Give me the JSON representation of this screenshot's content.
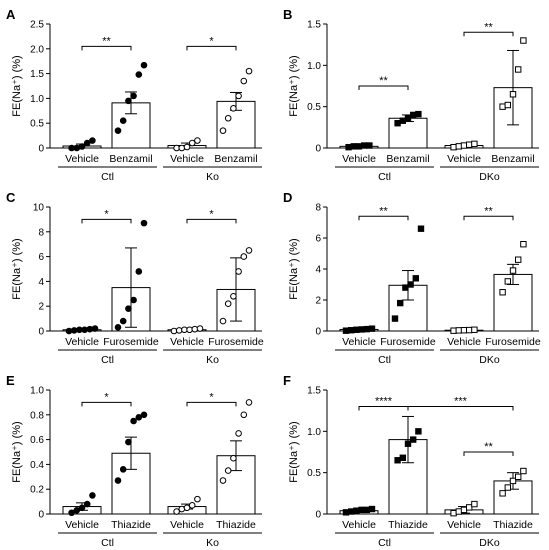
{
  "chart_data": [
    {
      "panel_letter": "A",
      "type": "bar",
      "ylabel": "FE(Na⁺) (%)",
      "ylim": [
        0,
        2.5
      ],
      "yticks": [
        0,
        0.5,
        1,
        1.5,
        2,
        2.5
      ],
      "tick_labels": [
        "0",
        "0.5",
        "1.0",
        "1.5",
        "2.0",
        "2.5"
      ],
      "categories": [
        "Vehicle",
        "Benzamil",
        "Vehicle",
        "Benzamil"
      ],
      "groups": [
        "Ctl",
        "Ko"
      ],
      "bars": [
        {
          "mean": 0.04,
          "err": 0.04,
          "marker": "filled-circle",
          "points": [
            0.0,
            0.0,
            0.03,
            0.1,
            0.15
          ]
        },
        {
          "mean": 0.91,
          "err": 0.22,
          "marker": "filled-circle",
          "points": [
            0.35,
            0.55,
            0.95,
            1.05,
            1.48,
            1.67
          ]
        },
        {
          "mean": 0.05,
          "err": 0.05,
          "marker": "open-circle",
          "points": [
            0.0,
            0.0,
            0.02,
            0.1,
            0.15
          ]
        },
        {
          "mean": 0.94,
          "err": 0.18,
          "marker": "open-circle",
          "points": [
            0.35,
            0.6,
            0.8,
            1.05,
            1.35,
            1.55
          ]
        }
      ],
      "significance": [
        {
          "from": 0,
          "to": 1,
          "y": 2.05,
          "label": "**"
        },
        {
          "from": 2,
          "to": 3,
          "y": 2.05,
          "label": "*"
        }
      ]
    },
    {
      "panel_letter": "B",
      "type": "bar",
      "ylabel": "FE(Na⁺) (%)",
      "ylim": [
        0,
        1.5
      ],
      "yticks": [
        0,
        0.5,
        1,
        1.5
      ],
      "tick_labels": [
        "0",
        "0.5",
        "1.0",
        "1.5"
      ],
      "categories": [
        "Vehicle",
        "Benzamil",
        "Vehicle",
        "Benzamil"
      ],
      "groups": [
        "Ctl",
        "DKo"
      ],
      "bars": [
        {
          "mean": 0.02,
          "err": 0.01,
          "marker": "filled-square",
          "points": [
            0.01,
            0.02,
            0.02,
            0.03,
            0.03
          ]
        },
        {
          "mean": 0.36,
          "err": 0.04,
          "marker": "filled-square",
          "points": [
            0.3,
            0.33,
            0.36,
            0.4,
            0.41
          ]
        },
        {
          "mean": 0.03,
          "err": 0.01,
          "marker": "open-square",
          "points": [
            0.01,
            0.02,
            0.03,
            0.04,
            0.05
          ]
        },
        {
          "mean": 0.73,
          "err": 0.45,
          "marker": "open-square",
          "points": [
            0.5,
            0.52,
            0.65,
            0.95,
            1.3
          ]
        }
      ],
      "significance": [
        {
          "from": 0,
          "to": 1,
          "y": 0.75,
          "label": "**"
        },
        {
          "from": 2,
          "to": 3,
          "y": 1.4,
          "label": "**"
        }
      ]
    },
    {
      "panel_letter": "C",
      "type": "bar",
      "ylabel": "FE(Na⁺) (%)",
      "ylim": [
        0,
        10
      ],
      "yticks": [
        0,
        2,
        4,
        6,
        8,
        10
      ],
      "tick_labels": [
        "0",
        "2",
        "4",
        "6",
        "8",
        "10"
      ],
      "categories": [
        "Vehicle",
        "Furosemide",
        "Vehicle",
        "Furosemide"
      ],
      "groups": [
        "Ctl",
        "Ko"
      ],
      "bars": [
        {
          "mean": 0.1,
          "err": 0.05,
          "marker": "filled-circle",
          "points": [
            0.0,
            0.05,
            0.1,
            0.1,
            0.15,
            0.2
          ]
        },
        {
          "mean": 3.5,
          "err": 3.2,
          "marker": "filled-circle",
          "points": [
            0.3,
            0.8,
            1.8,
            2.5,
            4.8,
            8.7
          ]
        },
        {
          "mean": 0.1,
          "err": 0.05,
          "marker": "open-circle",
          "points": [
            0.0,
            0.05,
            0.1,
            0.1,
            0.15,
            0.2
          ]
        },
        {
          "mean": 3.35,
          "err": 2.55,
          "marker": "open-circle",
          "points": [
            0.8,
            2.2,
            2.8,
            4.8,
            6.0,
            6.5
          ]
        }
      ],
      "significance": [
        {
          "from": 0,
          "to": 1,
          "y": 9.0,
          "label": "*"
        },
        {
          "from": 2,
          "to": 3,
          "y": 9.0,
          "label": "*"
        }
      ]
    },
    {
      "panel_letter": "D",
      "type": "bar",
      "ylabel": "FE(Na⁺) (%)",
      "ylim": [
        0,
        8
      ],
      "yticks": [
        0,
        2,
        4,
        6,
        8
      ],
      "tick_labels": [
        "0",
        "2",
        "4",
        "6",
        "8"
      ],
      "categories": [
        "Vehicle",
        "Furosemide",
        "Vehicle",
        "Furosemide"
      ],
      "groups": [
        "Ctl",
        "DKo"
      ],
      "bars": [
        {
          "mean": 0.1,
          "err": 0.05,
          "marker": "filled-square",
          "points": [
            0.02,
            0.05,
            0.08,
            0.1,
            0.12,
            0.15
          ]
        },
        {
          "mean": 2.95,
          "err": 0.95,
          "marker": "filled-square",
          "points": [
            0.8,
            1.8,
            2.8,
            3.0,
            3.4,
            6.6
          ]
        },
        {
          "mean": 0.05,
          "err": 0.02,
          "marker": "open-square",
          "points": [
            0.02,
            0.04,
            0.05,
            0.06,
            0.08
          ]
        },
        {
          "mean": 3.65,
          "err": 0.65,
          "marker": "open-square",
          "points": [
            2.5,
            3.2,
            3.9,
            4.6,
            5.6
          ]
        }
      ],
      "significance": [
        {
          "from": 0,
          "to": 1,
          "y": 7.4,
          "label": "**"
        },
        {
          "from": 2,
          "to": 3,
          "y": 7.4,
          "label": "**"
        }
      ]
    },
    {
      "panel_letter": "E",
      "type": "bar",
      "ylabel": "FE(Na⁺) (%)",
      "ylim": [
        0,
        1.0
      ],
      "yticks": [
        0,
        0.2,
        0.4,
        0.6,
        0.8,
        1.0
      ],
      "tick_labels": [
        "0",
        "0.2",
        "0.4",
        "0.6",
        "0.8",
        "1.0"
      ],
      "categories": [
        "Vehicle",
        "Thiazide",
        "Vehicle",
        "Thiazide"
      ],
      "groups": [
        "Ctl",
        "Ko"
      ],
      "bars": [
        {
          "mean": 0.06,
          "err": 0.03,
          "marker": "filled-circle",
          "points": [
            0.01,
            0.03,
            0.05,
            0.08,
            0.15
          ]
        },
        {
          "mean": 0.49,
          "err": 0.13,
          "marker": "filled-circle",
          "points": [
            0.27,
            0.36,
            0.58,
            0.75,
            0.78,
            0.8
          ]
        },
        {
          "mean": 0.06,
          "err": 0.02,
          "marker": "open-circle",
          "points": [
            0.02,
            0.04,
            0.05,
            0.07,
            0.12
          ]
        },
        {
          "mean": 0.47,
          "err": 0.12,
          "marker": "open-circle",
          "points": [
            0.27,
            0.35,
            0.45,
            0.65,
            0.8,
            0.9
          ]
        }
      ],
      "significance": [
        {
          "from": 0,
          "to": 1,
          "y": 0.9,
          "label": "*"
        },
        {
          "from": 2,
          "to": 3,
          "y": 0.9,
          "label": "*"
        }
      ]
    },
    {
      "panel_letter": "F",
      "type": "bar",
      "ylabel": "FE(Na⁺) (%)",
      "ylim": [
        0,
        1.5
      ],
      "yticks": [
        0,
        0.5,
        1,
        1.5
      ],
      "tick_labels": [
        "0",
        "0.5",
        "1.0",
        "1.5"
      ],
      "categories": [
        "Vehicle",
        "Thiazide",
        "Vehicle",
        "Thiazide"
      ],
      "groups": [
        "Ctl",
        "DKo"
      ],
      "bars": [
        {
          "mean": 0.04,
          "err": 0.01,
          "marker": "filled-square",
          "points": [
            0.02,
            0.03,
            0.04,
            0.05,
            0.05,
            0.06
          ]
        },
        {
          "mean": 0.9,
          "err": 0.28,
          "marker": "filled-square",
          "points": [
            0.65,
            0.68,
            0.85,
            0.9,
            1.0
          ]
        },
        {
          "mean": 0.05,
          "err": 0.04,
          "marker": "open-square",
          "points": [
            0.01,
            0.03,
            0.05,
            0.08,
            0.12
          ]
        },
        {
          "mean": 0.4,
          "err": 0.1,
          "marker": "open-square",
          "points": [
            0.25,
            0.32,
            0.4,
            0.45,
            0.52
          ]
        }
      ],
      "significance": [
        {
          "from": 0,
          "to": 1,
          "y": 1.3,
          "label": "****"
        },
        {
          "from": 1,
          "to": 3,
          "y": 1.3,
          "label": "***"
        },
        {
          "from": 2,
          "to": 3,
          "y": 0.75,
          "label": "**"
        }
      ]
    }
  ],
  "colors": {
    "ink": "#000000",
    "bar_fill": "#ffffff"
  }
}
